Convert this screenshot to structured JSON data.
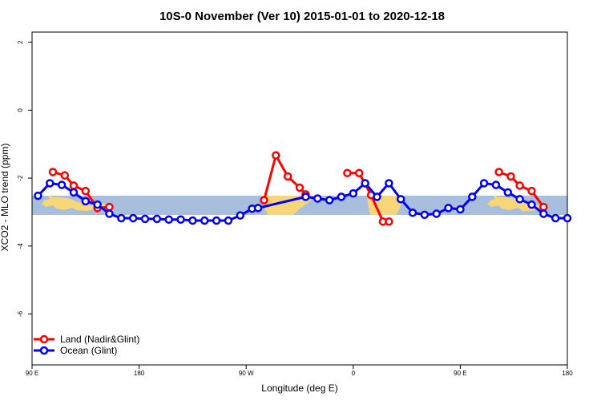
{
  "chart_data": {
    "type": "line",
    "title": "10S-0 November (Ver 10)   2015-01-01 to 2020-12-18",
    "xlabel": "Longitude (deg E)",
    "ylabel": "XCO2 - MLO trend (ppm)",
    "xlim": [
      90,
      270
    ],
    "ylim": [
      -7.5,
      2.3
    ],
    "xticks": [
      {
        "value": 90,
        "label": "90 E"
      },
      {
        "value": 126,
        "label": "180"
      },
      {
        "value": 162,
        "label": "90 W"
      },
      {
        "value": 198,
        "label": "0"
      },
      {
        "value": 234,
        "label": "90 E"
      },
      {
        "value": 270,
        "label": "180"
      }
    ],
    "yticks": [
      {
        "value": 2,
        "label": "2"
      },
      {
        "value": 0,
        "label": "0"
      },
      {
        "value": -2,
        "label": "-2"
      },
      {
        "value": -4,
        "label": "-4"
      },
      {
        "value": -6,
        "label": "-6"
      }
    ],
    "grid": false,
    "legend_position": "bottom-left",
    "map_band": {
      "y_top": -2.65,
      "y_bottom": -3.2,
      "ocean_color": "#a7bfdc",
      "land_color": "#f7d67a"
    },
    "series": [
      {
        "name": "Land (Nadir&Glint)",
        "color": "#ff0000",
        "segments": [
          {
            "x": [
              97,
              101,
              104,
              108,
              112,
              116
            ],
            "y": [
              -1.82,
              -1.92,
              -2.22,
              -2.38,
              -2.88,
              -2.85
            ]
          },
          {
            "x": [
              168,
              172,
              176,
              180,
              182
            ],
            "y": [
              -2.65,
              -1.33,
              -1.95,
              -2.28,
              -2.48
            ]
          },
          {
            "x": [
              196,
              200,
              204,
              208,
              210
            ],
            "y": [
              -1.85,
              -1.85,
              -2.5,
              -3.28,
              -3.28
            ]
          },
          {
            "x": [
              247,
              251,
              254,
              258,
              262
            ],
            "y": [
              -1.82,
              -1.95,
              -2.22,
              -2.38,
              -2.85
            ]
          }
        ]
      },
      {
        "name": "Ocean (Glint)",
        "color": "#0000ff",
        "segments": [
          {
            "x": [
              92,
              96,
              100,
              104,
              108,
              112,
              116,
              120,
              124,
              128,
              132,
              136,
              140,
              144,
              148,
              152,
              156,
              160,
              164,
              166,
              182,
              186,
              190,
              194,
              198,
              202,
              206,
              210,
              214,
              218,
              222,
              226,
              230,
              234,
              238,
              242,
              246,
              250,
              254,
              258,
              262,
              266,
              270
            ],
            "y": [
              -2.52,
              -2.15,
              -2.2,
              -2.42,
              -2.68,
              -2.78,
              -3.05,
              -3.18,
              -3.18,
              -3.2,
              -3.2,
              -3.22,
              -3.22,
              -3.25,
              -3.25,
              -3.25,
              -3.25,
              -3.1,
              -2.9,
              -2.88,
              -2.55,
              -2.6,
              -2.65,
              -2.55,
              -2.45,
              -2.15,
              -2.55,
              -2.15,
              -2.62,
              -3.02,
              -3.08,
              -3.05,
              -2.88,
              -2.92,
              -2.55,
              -2.15,
              -2.2,
              -2.42,
              -2.62,
              -2.78,
              -3.05,
              -3.18,
              -3.18
            ]
          }
        ]
      }
    ]
  }
}
